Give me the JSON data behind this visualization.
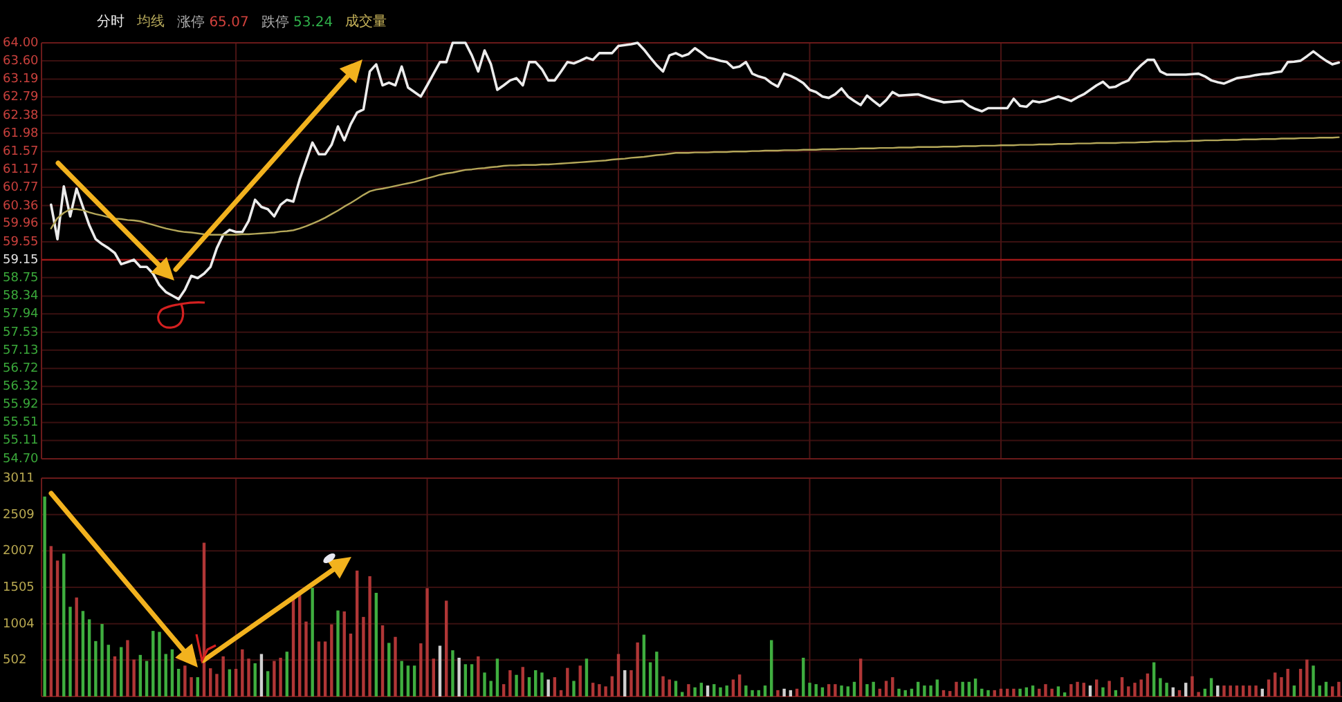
{
  "chart_data": [
    {
      "type": "line",
      "categories": [
        null,
        null,
        null,
        null,
        null,
        null,
        null,
        null,
        null,
        null,
        null,
        null,
        null,
        null,
        null,
        null,
        null,
        null,
        null,
        null,
        null,
        null,
        null,
        null,
        null,
        null,
        null,
        null,
        null,
        null,
        null,
        null,
        null,
        null,
        null,
        null,
        null,
        null,
        null,
        null,
        null,
        null,
        null,
        null,
        null,
        null,
        null,
        null,
        null,
        null,
        null,
        null,
        null,
        null,
        null,
        null,
        null,
        null,
        null,
        null,
        null,
        null,
        null,
        null,
        null,
        null,
        null,
        null,
        null,
        null,
        null,
        null,
        null,
        null,
        null,
        null,
        null,
        null,
        null,
        null,
        null,
        null,
        null,
        null,
        null,
        null,
        null,
        null,
        null,
        null,
        null,
        null,
        null,
        null,
        null,
        null,
        null,
        null,
        null,
        null,
        null,
        null,
        null,
        null,
        null,
        null,
        null,
        null,
        null,
        null,
        null,
        null,
        null,
        null,
        null,
        null,
        null,
        null,
        null,
        null,
        null,
        null,
        null,
        null,
        null,
        null,
        null,
        null,
        null,
        null,
        null,
        null,
        null,
        null,
        null,
        null,
        null,
        null,
        null,
        null,
        null,
        null,
        null,
        null,
        null,
        null,
        null,
        null,
        null,
        null,
        null,
        null,
        null,
        null,
        null,
        null,
        null,
        null,
        null,
        null,
        null,
        null,
        null,
        null,
        null,
        null,
        null,
        null,
        null,
        null,
        null,
        null,
        null,
        null,
        null,
        null,
        null,
        null,
        null,
        null,
        null,
        null,
        null,
        null,
        null,
        null,
        null,
        null,
        null,
        null,
        null,
        null,
        null,
        null,
        null,
        null,
        null,
        null,
        null,
        null,
        null,
        null,
        null,
        null
      ],
      "ylim": [
        54.7,
        64
      ],
      "yticks": [
        {
          "value": 64,
          "label": "64.00"
        },
        {
          "value": 63.6,
          "label": "63.60"
        },
        63.19,
        62.79,
        62.38,
        61.98,
        61.57,
        61.17,
        60.77,
        60.36,
        59.96,
        59.55,
        59.15,
        58.75,
        58.34,
        57.94,
        57.53,
        57.13,
        56.72,
        56.32,
        55.92,
        55.51,
        55.11,
        {
          "value": 54.7,
          "label": "54.70"
        }
      ],
      "grid": true,
      "tick_labels": "y",
      "ref_lines": [
        {
          "axis": "y",
          "value": 59.15,
          "color": "#a01818"
        }
      ],
      "annotations": [
        "涨停 65.07",
        "跌停 53.24"
      ],
      "series": [
        {
          "name": "分时",
          "color": "#ececec",
          "values": [
            null,
            60.38,
            59.61,
            60.79,
            60.12,
            60.74,
            60.33,
            59.92,
            59.61,
            59.5,
            59.41,
            59.3,
            59.05,
            59.1,
            59.15,
            58.99,
            58.99,
            58.84,
            58.58,
            58.43,
            58.35,
            58.27,
            58.48,
            58.79,
            58.74,
            58.84,
            58.99,
            59.41,
            59.71,
            59.82,
            59.77,
            59.77,
            60.02,
            60.49,
            60.33,
            60.28,
            60.12,
            60.38,
            60.49,
            60.45,
            60.95,
            61.36,
            61.77,
            61.51,
            61.51,
            61.72,
            62.13,
            61.82,
            62.18,
            62.44,
            62.51,
            63.36,
            63.52,
            63.05,
            63.11,
            63.05,
            63.47,
            63.0,
            62.9,
            62.8,
            63.05,
            63.31,
            63.57,
            63.57,
            64.0,
            64.0,
            64.0,
            63.72,
            63.36,
            63.83,
            63.52,
            62.95,
            63.05,
            63.16,
            63.21,
            63.05,
            63.57,
            63.57,
            63.41,
            63.16,
            63.16,
            63.36,
            63.57,
            63.54,
            63.6,
            63.67,
            63.62,
            63.77,
            63.77,
            63.77,
            63.93,
            63.95,
            63.97,
            64.0,
            63.85,
            63.67,
            63.5,
            63.36,
            63.72,
            63.77,
            63.7,
            63.75,
            63.88,
            63.78,
            63.67,
            63.64,
            63.6,
            63.57,
            63.44,
            63.47,
            63.57,
            63.31,
            63.25,
            63.21,
            63.1,
            63.02,
            63.31,
            63.26,
            63.19,
            63.1,
            62.95,
            62.9,
            62.8,
            62.77,
            62.85,
            62.98,
            62.8,
            62.7,
            62.61,
            62.82,
            62.7,
            62.59,
            62.72,
            62.9,
            62.82,
            62.83,
            62.84,
            62.85,
            62.8,
            62.75,
            62.71,
            62.67,
            62.68,
            62.69,
            62.7,
            62.59,
            62.52,
            62.47,
            62.54,
            62.54,
            62.54,
            62.54,
            62.75,
            62.59,
            62.57,
            62.7,
            62.67,
            62.7,
            62.75,
            62.8,
            62.75,
            62.7,
            62.78,
            62.85,
            62.95,
            63.05,
            63.13,
            63.0,
            63.02,
            63.1,
            63.16,
            63.36,
            63.5,
            63.62,
            63.62,
            63.36,
            63.29,
            63.29,
            63.29,
            63.29,
            63.3,
            63.31,
            63.25,
            63.16,
            63.12,
            63.09,
            63.15,
            63.21,
            63.23,
            63.25,
            63.28,
            63.3,
            63.31,
            63.34,
            63.36,
            63.57,
            63.58,
            63.6,
            63.7,
            63.81,
            63.7,
            63.6,
            63.52,
            63.56
          ]
        },
        {
          "name": "均线",
          "color": "#b5a85a",
          "values": [
            null,
            59.85,
            60.08,
            60.2,
            60.28,
            60.28,
            60.26,
            60.21,
            60.17,
            60.14,
            60.1,
            60.07,
            60.06,
            60.04,
            60.03,
            60.01,
            59.97,
            59.93,
            59.89,
            59.85,
            59.82,
            59.79,
            59.77,
            59.76,
            59.74,
            59.72,
            59.71,
            59.71,
            59.71,
            59.71,
            59.71,
            59.72,
            59.72,
            59.73,
            59.74,
            59.75,
            59.76,
            59.78,
            59.79,
            59.81,
            59.85,
            59.9,
            59.96,
            60.02,
            60.09,
            60.17,
            60.25,
            60.34,
            60.42,
            60.51,
            60.6,
            60.68,
            60.72,
            60.74,
            60.77,
            60.8,
            60.83,
            60.86,
            60.89,
            60.93,
            60.97,
            61.01,
            61.05,
            61.08,
            61.1,
            61.13,
            61.16,
            61.17,
            61.19,
            61.2,
            61.22,
            61.23,
            61.25,
            61.26,
            61.26,
            61.27,
            61.27,
            61.27,
            61.28,
            61.28,
            61.29,
            61.3,
            61.31,
            61.32,
            61.33,
            61.34,
            61.35,
            61.36,
            61.37,
            61.39,
            61.4,
            61.41,
            61.43,
            61.44,
            61.45,
            61.47,
            61.49,
            61.5,
            61.52,
            61.54,
            61.54,
            61.54,
            61.55,
            61.55,
            61.55,
            61.56,
            61.56,
            61.56,
            61.57,
            61.57,
            61.57,
            61.58,
            61.58,
            61.59,
            61.59,
            61.59,
            61.6,
            61.6,
            61.6,
            61.61,
            61.61,
            61.61,
            61.62,
            61.62,
            61.62,
            61.63,
            61.63,
            61.63,
            61.64,
            61.64,
            61.64,
            61.65,
            61.65,
            61.65,
            61.66,
            61.66,
            61.66,
            61.67,
            61.67,
            61.67,
            61.67,
            61.68,
            61.68,
            61.68,
            61.69,
            61.69,
            61.69,
            61.7,
            61.7,
            61.7,
            61.71,
            61.71,
            61.71,
            61.72,
            61.72,
            61.72,
            61.73,
            61.73,
            61.73,
            61.74,
            61.74,
            61.74,
            61.75,
            61.75,
            61.75,
            61.76,
            61.76,
            61.76,
            61.76,
            61.77,
            61.77,
            61.77,
            61.78,
            61.78,
            61.79,
            61.79,
            61.79,
            61.8,
            61.8,
            61.8,
            61.81,
            61.81,
            61.82,
            61.82,
            61.82,
            61.83,
            61.83,
            61.83,
            61.84,
            61.84,
            61.84,
            61.85,
            61.85,
            61.85,
            61.86,
            61.86,
            61.86,
            61.87,
            61.87,
            61.87,
            61.88,
            61.88,
            61.88,
            61.89
          ]
        }
      ]
    },
    {
      "type": "bar",
      "categories": [
        null,
        null,
        null,
        null,
        null,
        null,
        null,
        null,
        null,
        null,
        null,
        null,
        null,
        null,
        null,
        null,
        null,
        null,
        null,
        null,
        null,
        null,
        null,
        null,
        null,
        null,
        null,
        null,
        null,
        null,
        null,
        null,
        null,
        null,
        null,
        null,
        null,
        null,
        null,
        null,
        null,
        null,
        null,
        null,
        null,
        null,
        null,
        null,
        null,
        null,
        null,
        null,
        null,
        null,
        null,
        null,
        null,
        null,
        null,
        null,
        null,
        null,
        null,
        null,
        null,
        null,
        null,
        null,
        null,
        null,
        null,
        null,
        null,
        null,
        null,
        null,
        null,
        null,
        null,
        null,
        null,
        null,
        null,
        null,
        null,
        null,
        null,
        null,
        null,
        null,
        null,
        null,
        null,
        null,
        null,
        null,
        null,
        null,
        null,
        null,
        null,
        null,
        null,
        null,
        null,
        null,
        null,
        null,
        null,
        null,
        null,
        null,
        null,
        null,
        null,
        null,
        null,
        null,
        null,
        null,
        null,
        null,
        null,
        null,
        null,
        null,
        null,
        null,
        null,
        null,
        null,
        null,
        null,
        null,
        null,
        null,
        null,
        null,
        null,
        null,
        null,
        null,
        null,
        null,
        null,
        null,
        null,
        null,
        null,
        null,
        null,
        null,
        null,
        null,
        null,
        null,
        null,
        null,
        null,
        null,
        null,
        null,
        null,
        null,
        null,
        null,
        null,
        null,
        null,
        null,
        null,
        null,
        null,
        null,
        null,
        null,
        null,
        null,
        null,
        null,
        null,
        null,
        null,
        null,
        null,
        null,
        null,
        null,
        null,
        null,
        null,
        null,
        null,
        null,
        null,
        null,
        null,
        null,
        null,
        null,
        null,
        null,
        null,
        null
      ],
      "ylim": [
        0,
        3011
      ],
      "yticks": [
        502,
        1004,
        1505,
        2007,
        2509,
        3011
      ],
      "grid": true,
      "tick_labels": "y",
      "series": [
        {
          "name": "成交量",
          "values": [
            2757,
            2074,
            1874,
            1970,
            1237,
            1365,
            1179,
            1064,
            764,
            1000,
            713,
            553,
            681,
            777,
            509,
            573,
            490,
            904,
            891,
            586,
            650,
            381,
            426,
            266,
            266,
            2120,
            389,
            311,
            553,
            375,
            381,
            650,
            522,
            458,
            586,
            349,
            490,
            534,
            618,
            1369,
            1400,
            1033,
            1498,
            758,
            758,
            994,
            1186,
            1173,
            867,
            1736,
            1097,
            1659,
            1429,
            981,
            739,
            822,
            490,
            426,
            426,
            733,
            1493,
            522,
            700,
            1321,
            637,
            534,
            445,
            445,
            553,
            330,
            215,
            522,
            170,
            362,
            298,
            407,
            266,
            362,
            330,
            234,
            266,
            87,
            394,
            215,
            426,
            522,
            189,
            170,
            139,
            279,
            586,
            362,
            362,
            745,
            852,
            471,
            618,
            279,
            234,
            215,
            62,
            170,
            126,
            189,
            151,
            170,
            126,
            151,
            234,
            303,
            151,
            87,
            87,
            151,
            777,
            87,
            107,
            87,
            107,
            534,
            189,
            170,
            126,
            170,
            170,
            151,
            139,
            202,
            522,
            170,
            202,
            107,
            215,
            266,
            107,
            87,
            107,
            202,
            151,
            151,
            234,
            87,
            75,
            202,
            202,
            202,
            247,
            107,
            87,
            87,
            107,
            107,
            107,
            107,
            126,
            151,
            107,
            170,
            107,
            139,
            56,
            170,
            202,
            189,
            151,
            234,
            126,
            215,
            87,
            266,
            139,
            189,
            234,
            317,
            471,
            253,
            189,
            126,
            87,
            189,
            279,
            62,
            107,
            253,
            151,
            151,
            151,
            151,
            151,
            151,
            151,
            107,
            234,
            330,
            266,
            381,
            151,
            381,
            509,
            426,
            151,
            202,
            139,
            202
          ],
          "colors": [
            "#3fae3f",
            "#b03636",
            "#b03636",
            "#3fae3f",
            "#3fae3f",
            "#b03636",
            "#3fae3f",
            "#3fae3f",
            "#3fae3f",
            "#3fae3f",
            "#3fae3f",
            "#b03636",
            "#3fae3f",
            "#b03636",
            "#b03636",
            "#3fae3f",
            "#3fae3f",
            "#3fae3f",
            "#3fae3f",
            "#3fae3f",
            "#3fae3f",
            "#3fae3f",
            "#b03636",
            "#b03636",
            "#3fae3f",
            "#b03636",
            "#b03636",
            "#b03636",
            "#b03636",
            "#3fae3f",
            "#b03636",
            "#b03636",
            "#b03636",
            "#3fae3f",
            "#d0d0d0",
            "#3fae3f",
            "#b03636",
            "#b03636",
            "#3fae3f",
            "#b03636",
            "#b03636",
            "#b03636",
            "#3fae3f",
            "#b03636",
            "#b03636",
            "#b03636",
            "#3fae3f",
            "#b03636",
            "#b03636",
            "#b03636",
            "#b03636",
            "#b03636",
            "#3fae3f",
            "#b03636",
            "#3fae3f",
            "#b03636",
            "#3fae3f",
            "#3fae3f",
            "#3fae3f",
            "#b03636",
            "#b03636",
            "#b03636",
            "#d0d0d0",
            "#b03636",
            "#3fae3f",
            "#d0d0d0",
            "#3fae3f",
            "#3fae3f",
            "#b03636",
            "#3fae3f",
            "#3fae3f",
            "#3fae3f",
            "#b03636",
            "#b03636",
            "#3fae3f",
            "#b03636",
            "#3fae3f",
            "#3fae3f",
            "#3fae3f",
            "#d0d0d0",
            "#b03636",
            "#b03636",
            "#b03636",
            "#3fae3f",
            "#b03636",
            "#3fae3f",
            "#b03636",
            "#b03636",
            "#b03636",
            "#b03636",
            "#b03636",
            "#d0d0d0",
            "#b03636",
            "#b03636",
            "#3fae3f",
            "#3fae3f",
            "#3fae3f",
            "#b03636",
            "#b03636",
            "#3fae3f",
            "#3fae3f",
            "#b03636",
            "#3fae3f",
            "#3fae3f",
            "#d0d0d0",
            "#3fae3f",
            "#3fae3f",
            "#3fae3f",
            "#b03636",
            "#b03636",
            "#3fae3f",
            "#3fae3f",
            "#3fae3f",
            "#3fae3f",
            "#3fae3f",
            "#b03636",
            "#d0d0d0",
            "#d0d0d0",
            "#b03636",
            "#3fae3f",
            "#3fae3f",
            "#3fae3f",
            "#3fae3f",
            "#b03636",
            "#b03636",
            "#3fae3f",
            "#3fae3f",
            "#3fae3f",
            "#b03636",
            "#3fae3f",
            "#3fae3f",
            "#b03636",
            "#b03636",
            "#b03636",
            "#3fae3f",
            "#3fae3f",
            "#3fae3f",
            "#3fae3f",
            "#3fae3f",
            "#3fae3f",
            "#3fae3f",
            "#b03636",
            "#b03636",
            "#b03636",
            "#3fae3f",
            "#3fae3f",
            "#3fae3f",
            "#3fae3f",
            "#3fae3f",
            "#b03636",
            "#b03636",
            "#b03636",
            "#b03636",
            "#3fae3f",
            "#3fae3f",
            "#3fae3f",
            "#b03636",
            "#b03636",
            "#b03636",
            "#3fae3f",
            "#3fae3f",
            "#b03636",
            "#b03636",
            "#b03636",
            "#d0d0d0",
            "#b03636",
            "#3fae3f",
            "#b03636",
            "#3fae3f",
            "#b03636",
            "#b03636",
            "#b03636",
            "#b03636",
            "#b03636",
            "#3fae3f",
            "#3fae3f",
            "#3fae3f",
            "#d0d0d0",
            "#b03636",
            "#d0d0d0",
            "#b03636",
            "#b03636",
            "#3fae3f",
            "#3fae3f",
            "#d0d0d0",
            "#b03636",
            "#b03636",
            "#b03636",
            "#b03636",
            "#b03636",
            "#b03636",
            "#d0d0d0",
            "#b03636",
            "#b03636",
            "#b03636",
            "#b03636",
            "#3fae3f",
            "#b03636",
            "#b03636",
            "#3fae3f",
            "#3fae3f",
            "#3fae3f",
            "#b03636",
            "#b03636"
          ]
        }
      ]
    }
  ]
}
